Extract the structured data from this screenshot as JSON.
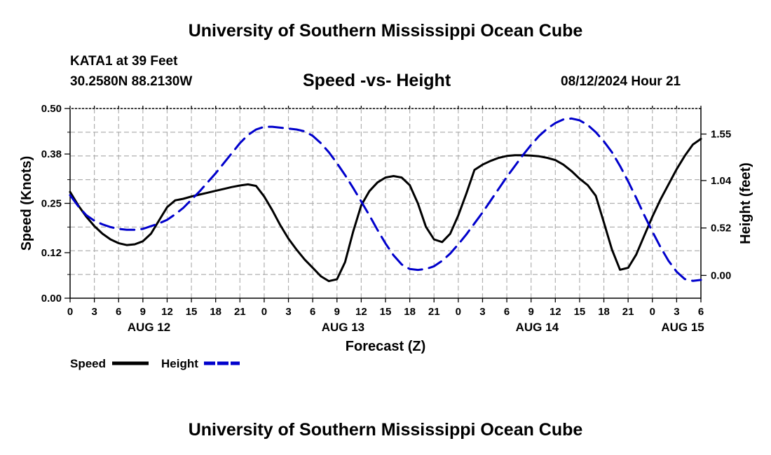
{
  "header": {
    "title": "University of Southern Mississippi Ocean Cube",
    "station": "KATA1 at 39 Feet",
    "coords": "30.2580N  88.2130W",
    "subtitle": "Speed -vs- Height",
    "datetime": "08/12/2024 Hour 21"
  },
  "footer": {
    "title": "University of Southern Mississippi Ocean Cube"
  },
  "colors": {
    "speed": "#000000",
    "height": "#0000cc",
    "grid": "#b0b0b0"
  },
  "chart_data": {
    "type": "line",
    "title": "Speed -vs- Height",
    "xlabel": "Forecast (Z)",
    "ylabel": "Speed (Knots)",
    "y2label": "Height (feet)",
    "xlim": [
      0,
      78
    ],
    "ylim": [
      0,
      0.5
    ],
    "y2lim": [
      -0.25,
      1.83
    ],
    "x_tick_labels": [
      "0",
      "3",
      "6",
      "9",
      "12",
      "15",
      "18",
      "21",
      "0",
      "3",
      "6",
      "9",
      "12",
      "15",
      "18",
      "21",
      "0",
      "3",
      "6",
      "9",
      "12",
      "15",
      "18",
      "21",
      "0",
      "3",
      "6"
    ],
    "date_labels": [
      {
        "label": "AUG 12",
        "x": 9.75
      },
      {
        "label": "AUG 13",
        "x": 33.75
      },
      {
        "label": "AUG 14",
        "x": 57.75
      },
      {
        "label": "AUG 15",
        "x": 75.75
      }
    ],
    "y_ticks": [
      0.0,
      0.12,
      0.25,
      0.38,
      0.5
    ],
    "y_tick_labels": [
      "0.00",
      "0.12",
      "0.25",
      "0.38",
      "0.50"
    ],
    "y2_ticks": [
      0.0,
      0.52,
      1.04,
      1.55
    ],
    "y2_tick_labels": [
      "0.00",
      "0.52",
      "1.04",
      "1.55"
    ],
    "series": [
      {
        "name": "Speed",
        "axis": "left",
        "style": "solid",
        "x": [
          0,
          1,
          2,
          3,
          4,
          5,
          6,
          7,
          8,
          9,
          10,
          11,
          12,
          13,
          14,
          15,
          16,
          17,
          18,
          19,
          20,
          21,
          22,
          23,
          24,
          25,
          26,
          27,
          28,
          29,
          30,
          31,
          32,
          33,
          34,
          35,
          36,
          37,
          38,
          39,
          40,
          41,
          42,
          43,
          44,
          45,
          46,
          47,
          48,
          49,
          50,
          51,
          52,
          53,
          54,
          55,
          56,
          57,
          58,
          59,
          60,
          61,
          62,
          63,
          64,
          65,
          66,
          67,
          68,
          69,
          70,
          71,
          72,
          73,
          74,
          75,
          76,
          77,
          78
        ],
        "values": [
          0.28,
          0.245,
          0.215,
          0.19,
          0.17,
          0.155,
          0.145,
          0.14,
          0.142,
          0.15,
          0.17,
          0.205,
          0.24,
          0.258,
          0.262,
          0.268,
          0.273,
          0.278,
          0.283,
          0.288,
          0.293,
          0.297,
          0.3,
          0.296,
          0.268,
          0.232,
          0.192,
          0.157,
          0.128,
          0.102,
          0.08,
          0.058,
          0.045,
          0.05,
          0.095,
          0.175,
          0.245,
          0.282,
          0.305,
          0.318,
          0.322,
          0.318,
          0.298,
          0.25,
          0.188,
          0.155,
          0.148,
          0.17,
          0.218,
          0.276,
          0.338,
          0.352,
          0.362,
          0.37,
          0.375,
          0.377,
          0.377,
          0.376,
          0.374,
          0.37,
          0.364,
          0.352,
          0.335,
          0.315,
          0.298,
          0.27,
          0.2,
          0.128,
          0.075,
          0.08,
          0.115,
          0.165,
          0.215,
          0.26,
          0.3,
          0.34,
          0.375,
          0.405,
          0.42
        ]
      },
      {
        "name": "Height",
        "axis": "right",
        "style": "dashed",
        "x": [
          0,
          1,
          2,
          3,
          4,
          5,
          6,
          7,
          8,
          9,
          10,
          11,
          12,
          13,
          14,
          15,
          16,
          17,
          18,
          19,
          20,
          21,
          22,
          23,
          24,
          25,
          26,
          27,
          28,
          29,
          30,
          31,
          32,
          33,
          34,
          35,
          36,
          37,
          38,
          39,
          40,
          41,
          42,
          43,
          44,
          45,
          46,
          47,
          48,
          49,
          50,
          51,
          52,
          53,
          54,
          55,
          56,
          57,
          58,
          59,
          60,
          61,
          62,
          63,
          64,
          65,
          66,
          67,
          68,
          69,
          70,
          71,
          72,
          73,
          74,
          75,
          76,
          77,
          78
        ],
        "values": [
          0.88,
          0.76,
          0.66,
          0.6,
          0.56,
          0.53,
          0.51,
          0.5,
          0.5,
          0.51,
          0.54,
          0.57,
          0.61,
          0.67,
          0.74,
          0.83,
          0.92,
          1.02,
          1.12,
          1.23,
          1.34,
          1.45,
          1.54,
          1.6,
          1.63,
          1.63,
          1.62,
          1.61,
          1.6,
          1.58,
          1.53,
          1.45,
          1.35,
          1.23,
          1.1,
          0.96,
          0.81,
          0.66,
          0.5,
          0.35,
          0.22,
          0.12,
          0.07,
          0.06,
          0.07,
          0.1,
          0.16,
          0.24,
          0.34,
          0.45,
          0.57,
          0.69,
          0.82,
          0.95,
          1.08,
          1.2,
          1.32,
          1.43,
          1.53,
          1.61,
          1.67,
          1.71,
          1.72,
          1.7,
          1.65,
          1.57,
          1.47,
          1.35,
          1.2,
          1.03,
          0.85,
          0.66,
          0.48,
          0.31,
          0.16,
          0.04,
          -0.04,
          -0.06,
          -0.05
        ]
      }
    ],
    "legend": [
      {
        "label": "Speed",
        "series": "Speed"
      },
      {
        "label": "Height",
        "series": "Height"
      }
    ],
    "legend_position": "bottom-left",
    "grid": true
  }
}
